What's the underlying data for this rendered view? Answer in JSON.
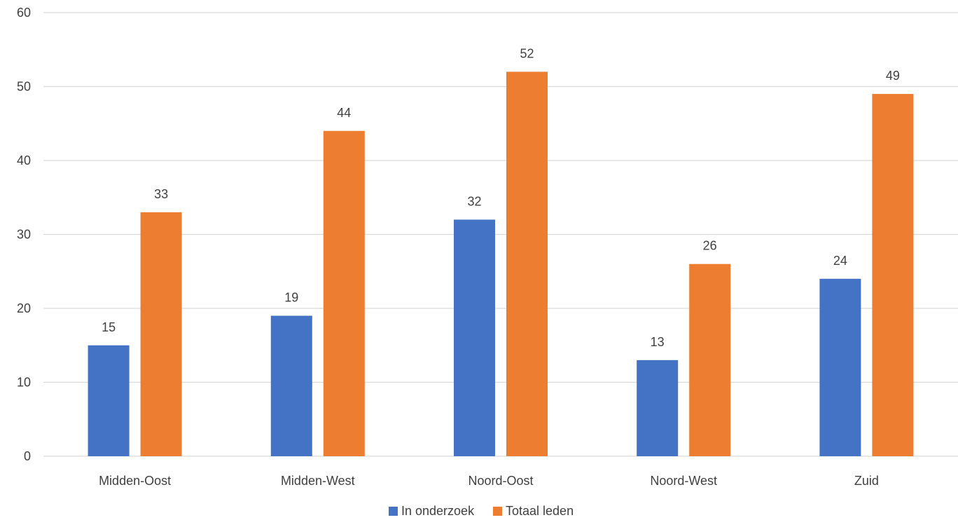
{
  "chart_data": {
    "type": "bar",
    "title": "",
    "xlabel": "",
    "ylabel": "",
    "categories": [
      "Midden-Oost",
      "Midden-West",
      "Noord-Oost",
      "Noord-West",
      "Zuid"
    ],
    "series": [
      {
        "name": "In onderzoek",
        "values": [
          15,
          19,
          32,
          13,
          24
        ],
        "color": "#4472C4"
      },
      {
        "name": "Totaal leden",
        "values": [
          33,
          44,
          52,
          26,
          49
        ],
        "color": "#ED7D31"
      }
    ],
    "ylim": [
      0,
      60
    ],
    "yticks": [
      0,
      10,
      20,
      30,
      40,
      50,
      60
    ],
    "grid": true,
    "data_labels": true,
    "legend_position": "bottom"
  },
  "colors": {
    "gridline": "#D9D9D9",
    "text": "#404040"
  }
}
